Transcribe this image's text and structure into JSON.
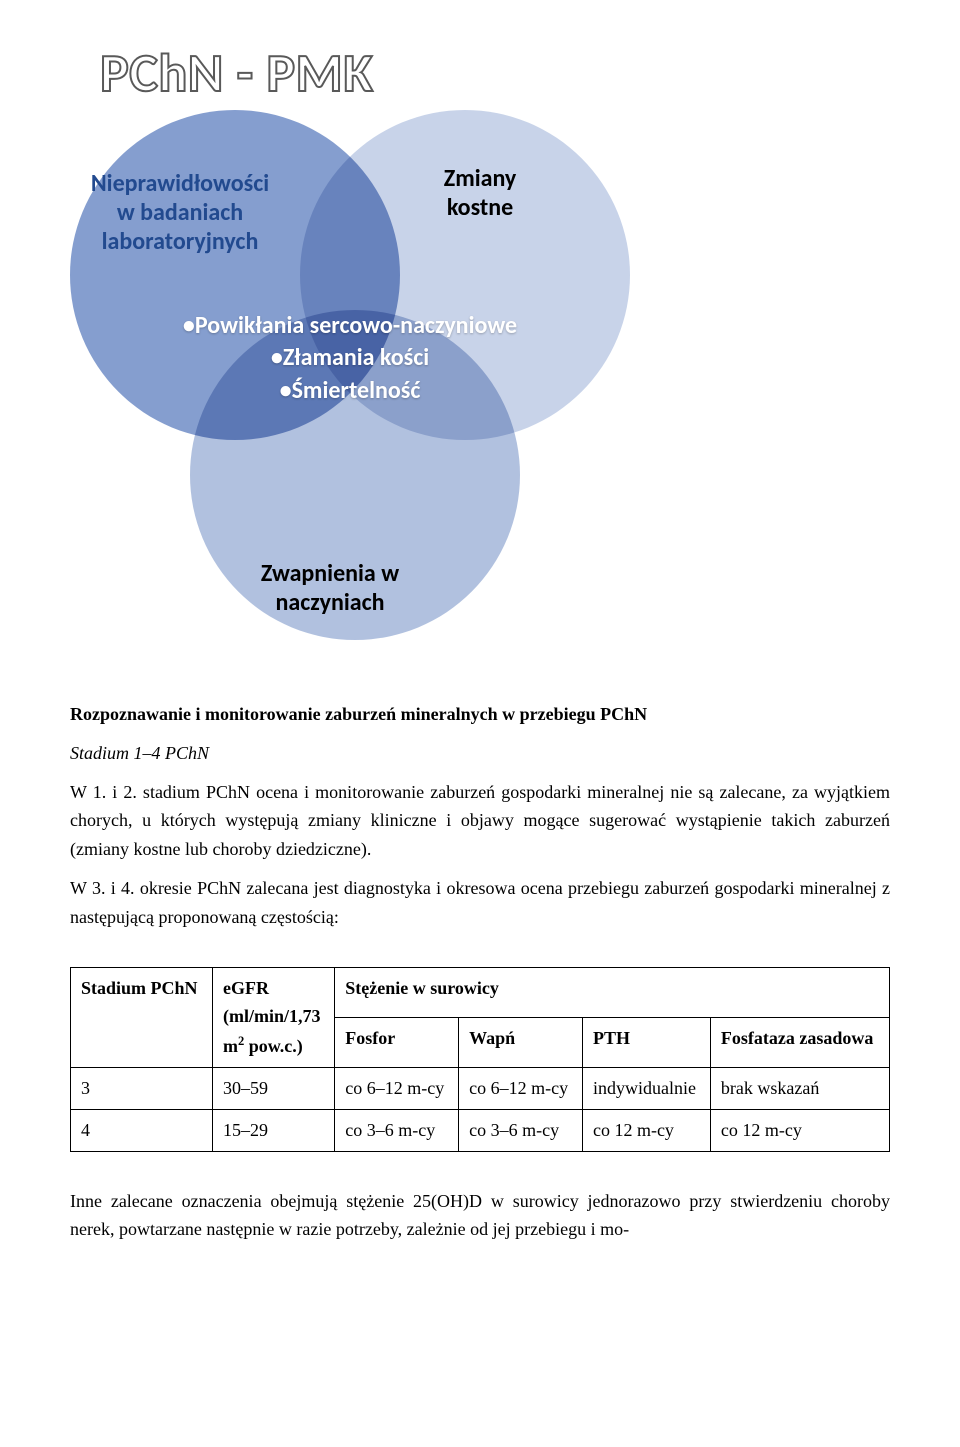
{
  "venn": {
    "title": "PChN - PMK",
    "circles": {
      "c1": {
        "label": "Nieprawidłowości w badaniach laboratoryjnych",
        "fill": "#6f8dc7"
      },
      "c2": {
        "label": "Zmiany kostne",
        "fill": "#b6c5e2"
      },
      "c3": {
        "label": "Zwapnienia w naczyniach",
        "fill": "#9eb2d7"
      }
    },
    "center_lines": [
      "•Powikłania sercowo-naczyniowe",
      "•Złamania kości",
      "•Śmiertelność"
    ]
  },
  "text": {
    "heading1": "Rozpoznawanie i monitorowanie zaburzeń mineralnych w przebiegu PChN",
    "sub1": "Stadium 1–4 PChN",
    "p1": "W 1. i 2. stadium PChN ocena i monitorowanie zaburzeń gospodarki mineralnej nie są zalecane, za wyjątkiem chorych, u których występują zmiany kliniczne i objawy mogące sugerować wystąpienie takich zaburzeń (zmiany kostne lub choroby dziedziczne).",
    "p2": "W 3. i 4. okresie PChN zalecana jest diagnostyka i okresowa ocena przebiegu zaburzeń gospodarki mineralnej z następującą proponowaną częstością:",
    "p3": "Inne zalecane oznaczenia obejmują stężenie 25(OH)D w surowicy jednorazowo przy stwierdzeniu choroby nerek, powtarzane następnie w razie potrzeby, zależnie od jej przebiegu i mo-"
  },
  "table": {
    "head": {
      "stadium": "Stadium PChN",
      "egfr_html": "eGFR (ml/min/1,73 m² pow.c.)",
      "serum": "Stężenie w surowicy",
      "fosfor": "Fosfor",
      "wapn": "Wapń",
      "pth": "PTH",
      "fosfataza": "Fosfataza zasadowa"
    },
    "rows": [
      {
        "stadium": "3",
        "egfr": "30–59",
        "fosfor": "co 6–12 m-cy",
        "wapn": "co 6–12 m-cy",
        "pth": "indywidualnie",
        "fosf": "brak wskazań"
      },
      {
        "stadium": "4",
        "egfr": "15–29",
        "fosfor": "co 3–6 m-cy",
        "wapn": "co 3–6 m-cy",
        "pth": "co 12 m-cy",
        "fosf": "co 12 m-cy"
      }
    ]
  }
}
